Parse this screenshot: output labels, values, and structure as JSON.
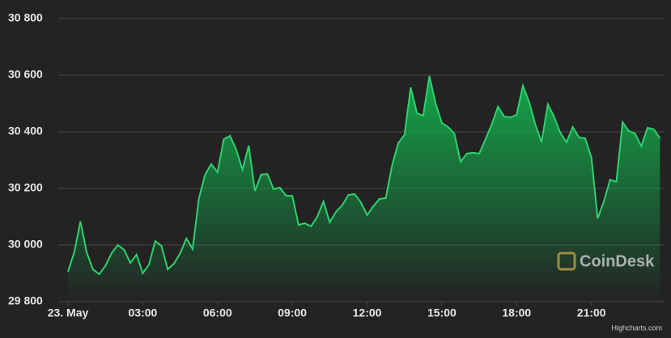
{
  "chart_data": {
    "type": "area",
    "watermark": "CoinDesk",
    "credits": "Highcharts.com",
    "x": [
      0,
      0.25,
      0.5,
      0.75,
      1,
      1.25,
      1.5,
      1.75,
      2,
      2.25,
      2.5,
      2.75,
      3,
      3.25,
      3.5,
      3.75,
      4,
      4.25,
      4.5,
      4.75,
      5,
      5.25,
      5.5,
      5.75,
      6,
      6.25,
      6.5,
      6.75,
      7,
      7.25,
      7.5,
      7.75,
      8,
      8.25,
      8.5,
      8.75,
      9,
      9.25,
      9.5,
      9.75,
      10,
      10.25,
      10.5,
      10.75,
      11,
      11.25,
      11.5,
      11.75,
      12,
      12.25,
      12.5,
      12.75,
      13,
      13.25,
      13.5,
      13.75,
      14,
      14.25,
      14.5,
      14.75,
      15,
      15.25,
      15.5,
      15.75,
      16,
      16.25,
      16.5,
      16.75,
      17,
      17.25,
      17.5,
      17.75,
      18,
      18.25,
      18.5,
      18.75,
      19,
      19.25,
      19.5,
      19.75,
      20,
      20.25,
      20.5,
      20.75,
      21,
      21.25,
      21.5,
      21.75,
      22,
      22.25,
      22.5,
      22.75,
      23,
      23.25,
      23.5,
      23.75
    ],
    "series": [
      {
        "color": "#2fd16e",
        "values": [
          29906,
          29974,
          30083,
          29974,
          29914,
          29897,
          29926,
          29971,
          30000,
          29983,
          29937,
          29966,
          29900,
          29931,
          30014,
          29997,
          29914,
          29934,
          29971,
          30023,
          29986,
          30163,
          30249,
          30286,
          30257,
          30374,
          30386,
          30337,
          30266,
          30351,
          30191,
          30249,
          30251,
          30197,
          30203,
          30174,
          30174,
          30071,
          30077,
          30066,
          30100,
          30154,
          30080,
          30117,
          30140,
          30177,
          30180,
          30151,
          30106,
          30137,
          30163,
          30166,
          30280,
          30360,
          30389,
          30557,
          30466,
          30457,
          30597,
          30500,
          30431,
          30417,
          30394,
          30294,
          30323,
          30326,
          30323,
          30374,
          30426,
          30489,
          30454,
          30451,
          30460,
          30563,
          30506,
          30426,
          30363,
          30497,
          30454,
          30397,
          30363,
          30417,
          30380,
          30377,
          30309,
          30094,
          30154,
          30231,
          30223,
          30434,
          30403,
          30394,
          30349,
          30414,
          30409,
          30377
        ]
      }
    ],
    "xlim": [
      -0.39,
      23.9
    ],
    "ylim": [
      29800,
      30800
    ],
    "xticks": [
      {
        "value": 0,
        "label": "23. May"
      },
      {
        "value": 3,
        "label": "03:00"
      },
      {
        "value": 6,
        "label": "06:00"
      },
      {
        "value": 9,
        "label": "09:00"
      },
      {
        "value": 12,
        "label": "12:00"
      },
      {
        "value": 15,
        "label": "15:00"
      },
      {
        "value": 18,
        "label": "18:00"
      },
      {
        "value": 21,
        "label": "21:00"
      }
    ],
    "yticks": [
      {
        "value": 29800,
        "label": "29 800"
      },
      {
        "value": 30000,
        "label": "30 000"
      },
      {
        "value": 30200,
        "label": "30 200"
      },
      {
        "value": 30400,
        "label": "30 400"
      },
      {
        "value": 30600,
        "label": "30 600"
      },
      {
        "value": 30800,
        "label": "30 800"
      }
    ],
    "grid": true
  }
}
